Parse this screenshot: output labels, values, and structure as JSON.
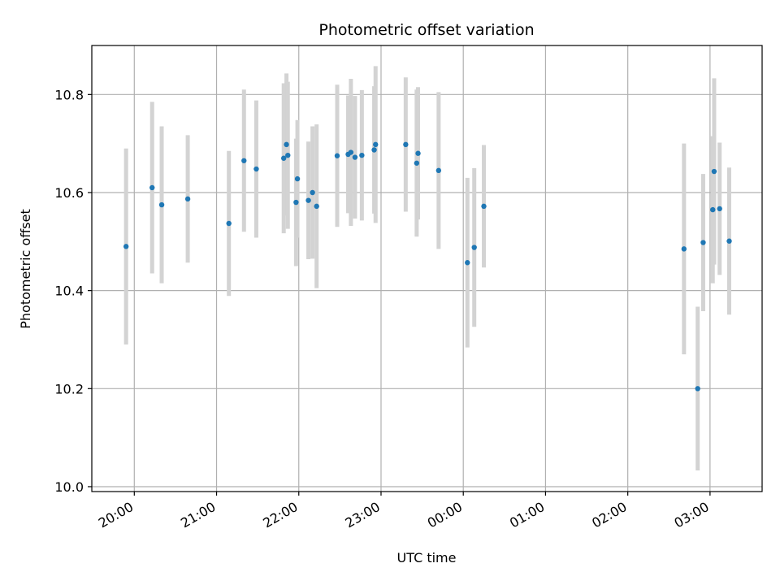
{
  "chart_data": {
    "type": "scatter",
    "title": "Photometric offset variation",
    "xlabel": "UTC time",
    "ylabel": "Photometric offset",
    "x_unit": "UTC time (HH:MM); times after midnight belong to the next day",
    "xlim": [
      "19:29",
      "03:38"
    ],
    "ylim": [
      9.99,
      10.9
    ],
    "x_ticks": [
      "20:00",
      "21:00",
      "22:00",
      "23:00",
      "00:00",
      "01:00",
      "02:00",
      "03:00"
    ],
    "y_ticks": [
      "10.0",
      "10.2",
      "10.4",
      "10.6",
      "10.8"
    ],
    "grid": true,
    "point_color": "#1f77b4",
    "errorbar_color": "#d3d3d3",
    "points": [
      {
        "x": "19:54",
        "y": 10.49,
        "yerr": 0.2
      },
      {
        "x": "20:13",
        "y": 10.61,
        "yerr": 0.175
      },
      {
        "x": "20:20",
        "y": 10.575,
        "yerr": 0.16
      },
      {
        "x": "20:39",
        "y": 10.587,
        "yerr": 0.13
      },
      {
        "x": "21:09",
        "y": 10.537,
        "yerr": 0.148
      },
      {
        "x": "21:20",
        "y": 10.665,
        "yerr": 0.145
      },
      {
        "x": "21:29",
        "y": 10.648,
        "yerr": 0.14
      },
      {
        "x": "21:49",
        "y": 10.67,
        "yerr": 0.153
      },
      {
        "x": "21:51",
        "y": 10.698,
        "yerr": 0.145
      },
      {
        "x": "21:52",
        "y": 10.676,
        "yerr": 0.15
      },
      {
        "x": "21:58",
        "y": 10.58,
        "yerr": 0.13
      },
      {
        "x": "21:59",
        "y": 10.628,
        "yerr": 0.12
      },
      {
        "x": "22:07",
        "y": 10.584,
        "yerr": 0.12
      },
      {
        "x": "22:10",
        "y": 10.6,
        "yerr": 0.135
      },
      {
        "x": "22:13",
        "y": 10.572,
        "yerr": 0.167
      },
      {
        "x": "22:28",
        "y": 10.675,
        "yerr": 0.145
      },
      {
        "x": "22:36",
        "y": 10.678,
        "yerr": 0.12
      },
      {
        "x": "22:38",
        "y": 10.682,
        "yerr": 0.15
      },
      {
        "x": "22:41",
        "y": 10.672,
        "yerr": 0.125
      },
      {
        "x": "22:46",
        "y": 10.676,
        "yerr": 0.133
      },
      {
        "x": "22:55",
        "y": 10.687,
        "yerr": 0.13
      },
      {
        "x": "22:56",
        "y": 10.698,
        "yerr": 0.16
      },
      {
        "x": "23:18",
        "y": 10.698,
        "yerr": 0.137
      },
      {
        "x": "23:26",
        "y": 10.66,
        "yerr": 0.15
      },
      {
        "x": "23:27",
        "y": 10.68,
        "yerr": 0.135
      },
      {
        "x": "23:42",
        "y": 10.645,
        "yerr": 0.16
      },
      {
        "x": "00:03",
        "y": 10.457,
        "yerr": 0.173
      },
      {
        "x": "00:08",
        "y": 10.488,
        "yerr": 0.162
      },
      {
        "x": "00:15",
        "y": 10.572,
        "yerr": 0.125
      },
      {
        "x": "02:41",
        "y": 10.485,
        "yerr": 0.215
      },
      {
        "x": "02:51",
        "y": 10.2,
        "yerr": 0.167
      },
      {
        "x": "02:55",
        "y": 10.498,
        "yerr": 0.14
      },
      {
        "x": "03:02",
        "y": 10.565,
        "yerr": 0.15
      },
      {
        "x": "03:03",
        "y": 10.643,
        "yerr": 0.19
      },
      {
        "x": "03:07",
        "y": 10.567,
        "yerr": 0.135
      },
      {
        "x": "03:14",
        "y": 10.501,
        "yerr": 0.15
      }
    ]
  }
}
